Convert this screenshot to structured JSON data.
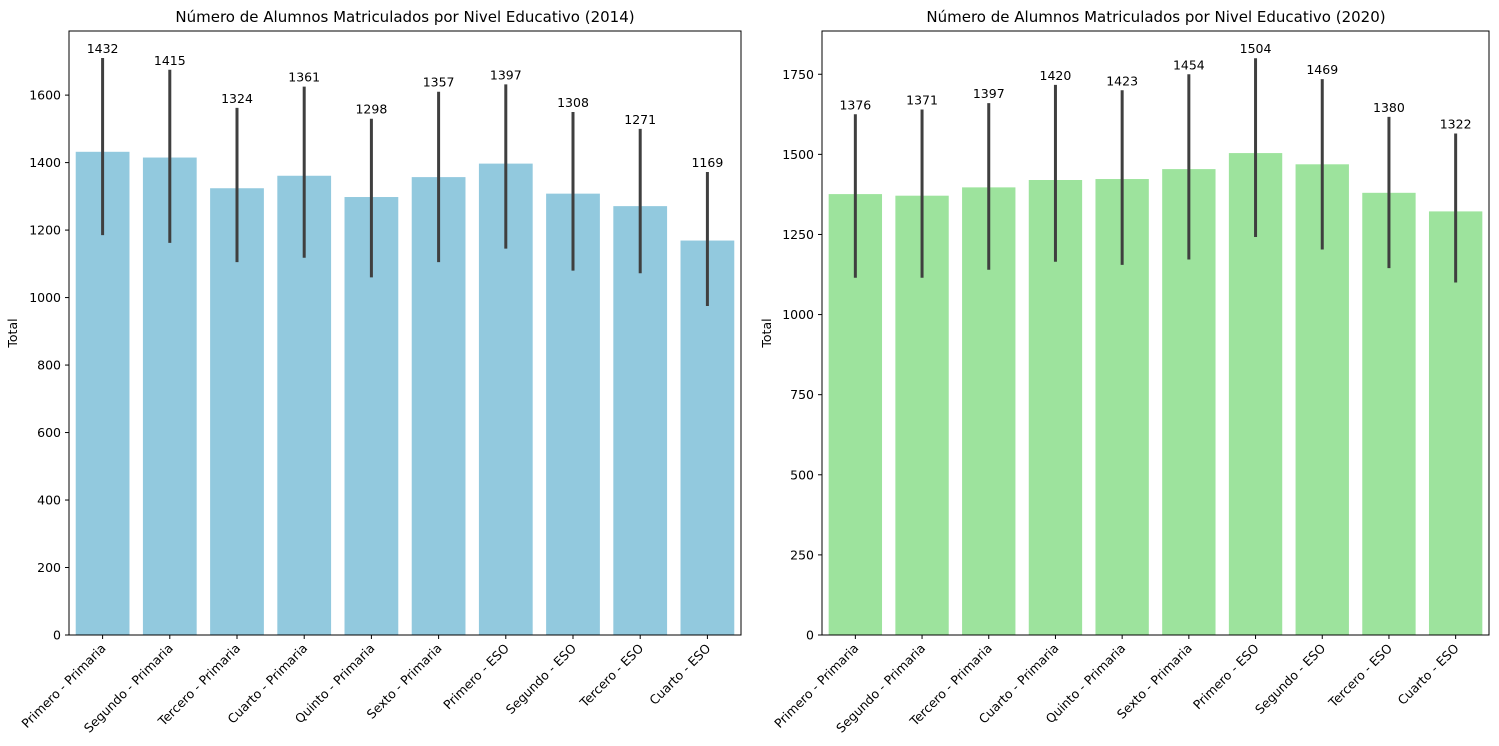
{
  "chart_data": [
    {
      "type": "bar",
      "title": "Número de Alumnos Matriculados por Nivel Educativo (2014)",
      "xlabel": "",
      "ylabel": "Total",
      "ylim": [
        0,
        1790
      ],
      "yticks": [
        0,
        200,
        400,
        600,
        800,
        1000,
        1200,
        1400,
        1600
      ],
      "color": "#92c9de",
      "grid": false,
      "categories": [
        "Primero - Primaria",
        "Segundo - Primaria",
        "Tercero - Primaria",
        "Cuarto - Primaria",
        "Quinto - Primaria",
        "Sexto - Primaria",
        "Primero - ESO",
        "Segundo - ESO",
        "Tercero - ESO",
        "Cuarto - ESO"
      ],
      "values": [
        1432,
        1415,
        1324,
        1361,
        1298,
        1357,
        1397,
        1308,
        1271,
        1169
      ],
      "error_low": [
        1185,
        1162,
        1105,
        1118,
        1060,
        1105,
        1145,
        1080,
        1072,
        975
      ],
      "error_high": [
        1710,
        1675,
        1562,
        1625,
        1530,
        1610,
        1632,
        1550,
        1500,
        1372
      ]
    },
    {
      "type": "bar",
      "title": "Número de Alumnos Matriculados por Nivel Educativo (2020)",
      "xlabel": "",
      "ylabel": "Total",
      "ylim": [
        0,
        1885
      ],
      "yticks": [
        0,
        250,
        500,
        750,
        1000,
        1250,
        1500,
        1750
      ],
      "color": "#9de39d",
      "grid": false,
      "categories": [
        "Primero - Primaria",
        "Segundo - Primaria",
        "Tercero - Primaria",
        "Cuarto - Primaria",
        "Quinto - Primaria",
        "Sexto - Primaria",
        "Primero - ESO",
        "Segundo - ESO",
        "Tercero - ESO",
        "Cuarto - ESO"
      ],
      "values": [
        1376,
        1371,
        1397,
        1420,
        1423,
        1454,
        1504,
        1469,
        1380,
        1322
      ],
      "error_low": [
        1115,
        1115,
        1140,
        1165,
        1155,
        1172,
        1242,
        1203,
        1145,
        1100
      ],
      "error_high": [
        1625,
        1640,
        1660,
        1717,
        1700,
        1750,
        1800,
        1735,
        1617,
        1565
      ]
    }
  ]
}
